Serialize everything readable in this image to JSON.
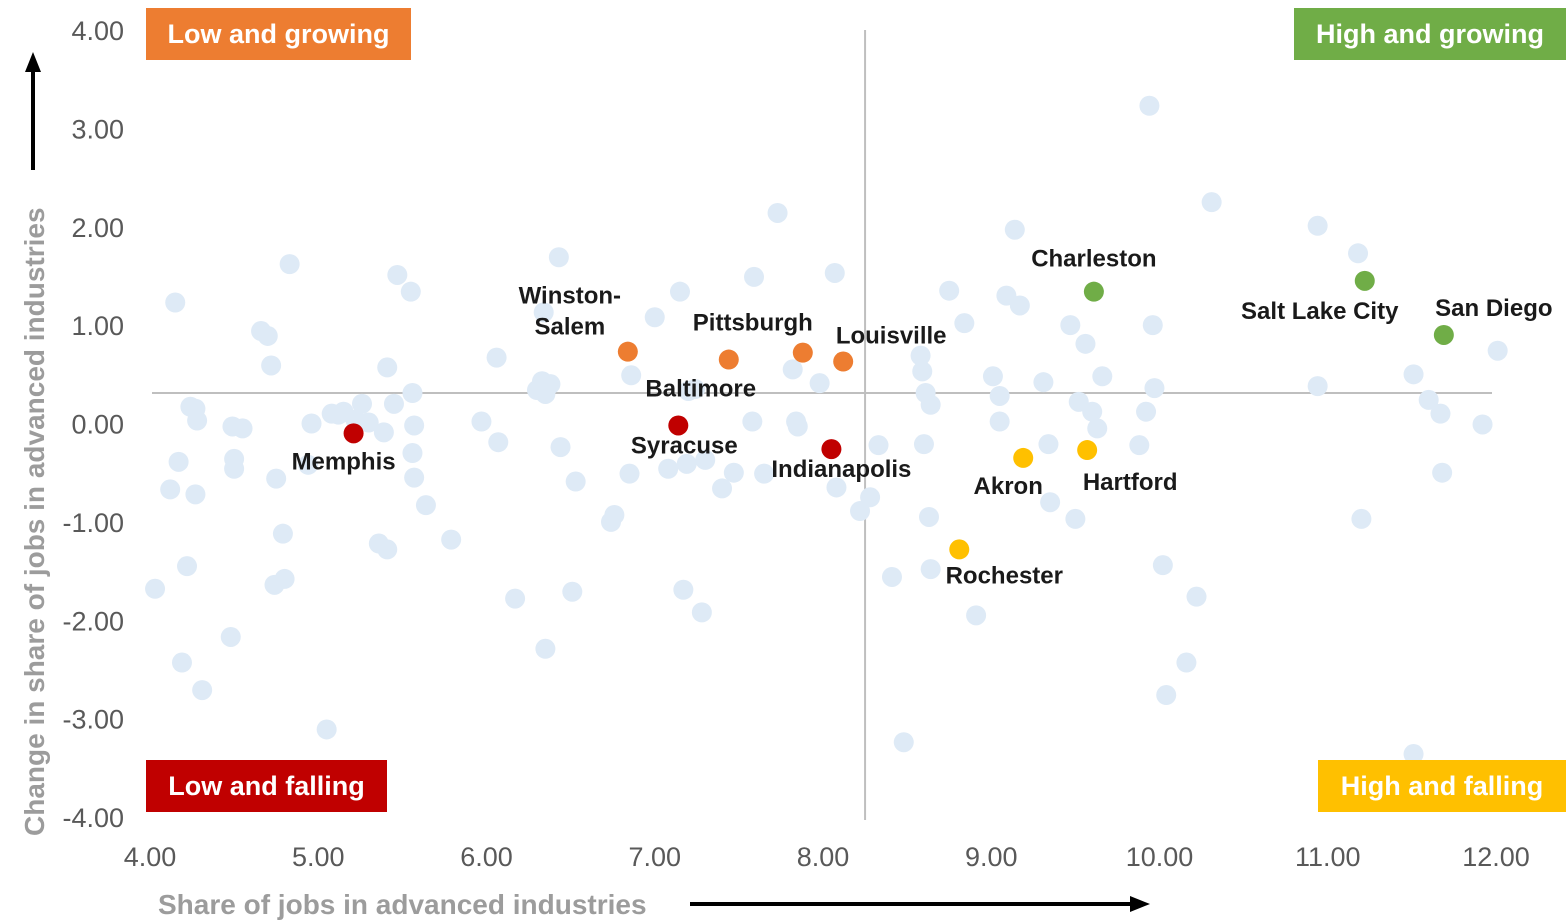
{
  "chart_data": {
    "type": "scatter",
    "xlabel": "Share of jobs in advanced industries",
    "ylabel": "Change in share of jobs in advanced industries",
    "xlim": [
      4,
      12
    ],
    "ylim": [
      -4,
      4
    ],
    "x_ticks": [
      "4.00",
      "5.00",
      "6.00",
      "7.00",
      "8.00",
      "9.00",
      "10.00",
      "11.00",
      "12.00"
    ],
    "y_ticks": [
      "4.00",
      "3.00",
      "2.00",
      "1.00",
      "0.00",
      "-1.00",
      "-2.00",
      "-3.00",
      "-4.00"
    ],
    "reference_lines": {
      "x": 8.25,
      "y": 0.31
    },
    "quadrants": [
      {
        "label": "Low and growing",
        "color": "#ED7D31"
      },
      {
        "label": "High and growing",
        "color": "#70AD47"
      },
      {
        "label": "Low and falling",
        "color": "#C00000"
      },
      {
        "label": "High and falling",
        "color": "#FFC000"
      }
    ],
    "background_color": "#DEEAF6",
    "background_points": [
      [
        4.03,
        -1.68
      ],
      [
        4.12,
        -0.67
      ],
      [
        4.15,
        1.23
      ],
      [
        4.17,
        -0.39
      ],
      [
        4.19,
        -2.43
      ],
      [
        4.22,
        -1.45
      ],
      [
        4.24,
        0.17
      ],
      [
        4.27,
        0.15
      ],
      [
        4.27,
        -0.72
      ],
      [
        4.28,
        0.03
      ],
      [
        4.31,
        -2.71
      ],
      [
        4.48,
        -2.17
      ],
      [
        4.49,
        -0.03
      ],
      [
        4.5,
        -0.36
      ],
      [
        4.5,
        -0.46
      ],
      [
        4.55,
        -0.05
      ],
      [
        4.66,
        0.94
      ],
      [
        4.7,
        0.89
      ],
      [
        4.72,
        0.59
      ],
      [
        4.74,
        -1.64
      ],
      [
        4.75,
        -0.56
      ],
      [
        4.79,
        -1.12
      ],
      [
        4.8,
        -1.58
      ],
      [
        4.83,
        1.62
      ],
      [
        4.94,
        -0.42
      ],
      [
        4.96,
        0.0
      ],
      [
        5.05,
        -3.11
      ],
      [
        5.08,
        0.1
      ],
      [
        5.12,
        0.09
      ],
      [
        5.15,
        0.12
      ],
      [
        5.22,
        0.04
      ],
      [
        5.26,
        0.2
      ],
      [
        5.3,
        0.01
      ],
      [
        5.36,
        -1.22
      ],
      [
        5.39,
        -0.09
      ],
      [
        5.41,
        0.57
      ],
      [
        5.41,
        -1.28
      ],
      [
        5.45,
        0.2
      ],
      [
        5.47,
        1.51
      ],
      [
        5.55,
        1.34
      ],
      [
        5.56,
        0.31
      ],
      [
        5.56,
        -0.3
      ],
      [
        5.57,
        -0.02
      ],
      [
        5.57,
        -0.55
      ],
      [
        5.64,
        -0.83
      ],
      [
        5.79,
        -1.18
      ],
      [
        5.97,
        0.02
      ],
      [
        6.06,
        0.67
      ],
      [
        6.07,
        -0.19
      ],
      [
        6.17,
        -1.78
      ],
      [
        6.3,
        0.34
      ],
      [
        6.33,
        0.43
      ],
      [
        6.34,
        1.13
      ],
      [
        6.35,
        0.3
      ],
      [
        6.35,
        -2.29
      ],
      [
        6.38,
        0.4
      ],
      [
        6.43,
        1.69
      ],
      [
        6.44,
        -0.24
      ],
      [
        6.51,
        -1.71
      ],
      [
        6.53,
        -0.59
      ],
      [
        6.74,
        -1.0
      ],
      [
        6.76,
        -0.93
      ],
      [
        6.85,
        -0.51
      ],
      [
        6.86,
        0.49
      ],
      [
        7.0,
        1.08
      ],
      [
        7.08,
        -0.46
      ],
      [
        7.15,
        1.34
      ],
      [
        7.17,
        -1.69
      ],
      [
        7.19,
        -0.41
      ],
      [
        7.2,
        0.33
      ],
      [
        7.24,
        0.35
      ],
      [
        7.28,
        -1.92
      ],
      [
        7.3,
        -0.37
      ],
      [
        7.4,
        -0.66
      ],
      [
        7.47,
        -0.5
      ],
      [
        7.58,
        0.02
      ],
      [
        7.59,
        1.49
      ],
      [
        7.65,
        -0.51
      ],
      [
        7.73,
        2.14
      ],
      [
        7.82,
        0.55
      ],
      [
        7.84,
        0.02
      ],
      [
        7.85,
        -0.03
      ],
      [
        7.98,
        0.41
      ],
      [
        8.07,
        1.53
      ],
      [
        8.08,
        -0.65
      ],
      [
        8.22,
        -0.89
      ],
      [
        8.28,
        -0.75
      ],
      [
        8.33,
        -0.22
      ],
      [
        8.41,
        -1.56
      ],
      [
        8.48,
        -3.24
      ],
      [
        8.58,
        0.69
      ],
      [
        8.59,
        0.53
      ],
      [
        8.6,
        -0.21
      ],
      [
        8.61,
        0.31
      ],
      [
        8.63,
        -0.95
      ],
      [
        8.64,
        0.19
      ],
      [
        8.64,
        -1.48
      ],
      [
        8.75,
        1.35
      ],
      [
        8.84,
        1.02
      ],
      [
        8.91,
        -1.95
      ],
      [
        9.01,
        0.48
      ],
      [
        9.05,
        0.28
      ],
      [
        9.05,
        0.02
      ],
      [
        9.09,
        1.3
      ],
      [
        9.14,
        1.97
      ],
      [
        9.17,
        1.2
      ],
      [
        9.31,
        0.42
      ],
      [
        9.34,
        -0.21
      ],
      [
        9.35,
        -0.8
      ],
      [
        9.47,
        1.0
      ],
      [
        9.5,
        -0.97
      ],
      [
        9.52,
        0.22
      ],
      [
        9.56,
        0.81
      ],
      [
        9.6,
        0.12
      ],
      [
        9.63,
        -0.05
      ],
      [
        9.66,
        0.48
      ],
      [
        9.88,
        -0.22
      ],
      [
        9.92,
        0.12
      ],
      [
        9.94,
        3.23
      ],
      [
        9.96,
        1.0
      ],
      [
        9.97,
        0.36
      ],
      [
        10.02,
        -1.44
      ],
      [
        10.04,
        -2.76
      ],
      [
        10.16,
        -2.43
      ],
      [
        10.22,
        -1.76
      ],
      [
        10.31,
        2.25
      ],
      [
        10.94,
        2.01
      ],
      [
        10.94,
        0.38
      ],
      [
        11.18,
        1.73
      ],
      [
        11.2,
        -0.97
      ],
      [
        11.51,
        0.5
      ],
      [
        11.51,
        -3.36
      ],
      [
        11.6,
        0.24
      ],
      [
        11.67,
        0.1
      ],
      [
        11.68,
        -0.5
      ],
      [
        11.92,
        -0.01
      ],
      [
        12.01,
        0.74
      ]
    ],
    "highlighted_points": [
      {
        "name": "Memphis",
        "x": 5.21,
        "y": -0.1,
        "color": "#C00000"
      },
      {
        "name": "Syracuse",
        "x": 7.14,
        "y": -0.02,
        "color": "#C00000"
      },
      {
        "name": "Indianapolis",
        "x": 8.05,
        "y": -0.26,
        "color": "#C00000"
      },
      {
        "name": "Winston-Salem",
        "lines": [
          "Winston-",
          "Salem"
        ],
        "x": 6.84,
        "y": 0.73,
        "color": "#ED7D31"
      },
      {
        "name": "Baltimore",
        "x": 7.44,
        "y": 0.65,
        "color": "#ED7D31"
      },
      {
        "name": "Pittsburgh",
        "x": 7.88,
        "y": 0.72,
        "color": "#ED7D31"
      },
      {
        "name": "Louisville",
        "x": 8.12,
        "y": 0.63,
        "color": "#ED7D31"
      },
      {
        "name": "Charleston",
        "x": 9.61,
        "y": 1.34,
        "color": "#70AD47"
      },
      {
        "name": "Salt Lake City",
        "x": 11.22,
        "y": 1.45,
        "color": "#70AD47"
      },
      {
        "name": "San Diego",
        "x": 11.69,
        "y": 0.9,
        "color": "#70AD47"
      },
      {
        "name": "Akron",
        "x": 9.19,
        "y": -0.35,
        "color": "#FFC000"
      },
      {
        "name": "Hartford",
        "x": 9.57,
        "y": -0.27,
        "color": "#FFC000"
      },
      {
        "name": "Rochester",
        "x": 8.81,
        "y": -1.28,
        "color": "#FFC000"
      }
    ]
  }
}
